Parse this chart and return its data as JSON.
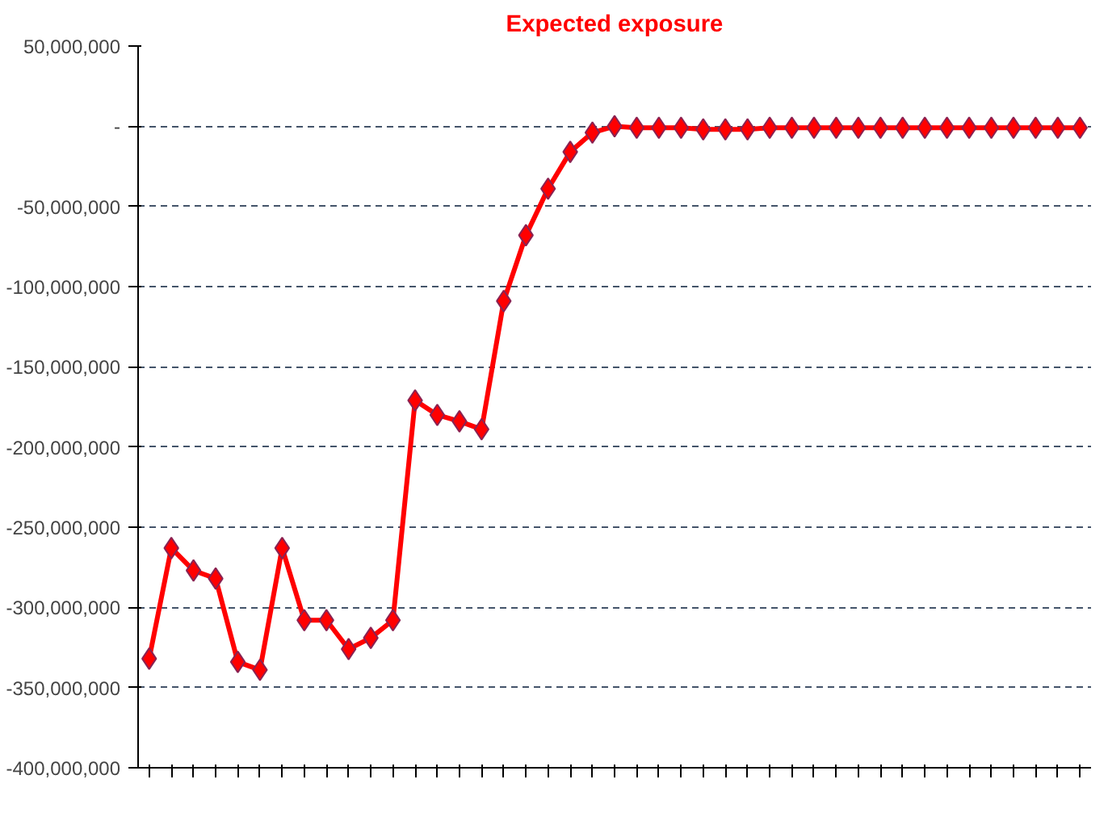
{
  "chart_data": {
    "type": "line",
    "title": "Expected exposure",
    "categories": [
      null,
      null,
      null,
      null,
      null,
      null,
      null,
      null,
      null,
      null,
      null,
      null,
      null,
      null,
      null,
      null,
      null,
      null,
      null,
      null,
      null,
      null,
      null,
      null,
      null,
      null,
      null,
      null,
      null,
      null,
      null,
      null,
      null,
      null,
      null,
      null,
      null,
      null,
      null,
      null,
      null,
      null,
      null
    ],
    "series": [
      {
        "color": "#ff0000",
        "values": [
          -332000000,
          -263000000,
          -277000000,
          -282000000,
          -334000000,
          -339000000,
          -263000000,
          -308000000,
          -308000000,
          -326000000,
          -319000000,
          -308000000,
          -171000000,
          -180000000,
          -184000000,
          -189000000,
          -109000000,
          -68000000,
          -39000000,
          -16000000,
          -4000000,
          0,
          -1000000,
          -1000000,
          -1000000,
          -2000000,
          -2000000,
          -2000000,
          -1000000,
          -1000000,
          -1000000,
          -1000000,
          -1000000,
          -1000000,
          -1000000,
          -1000000,
          -1000000,
          -1000000,
          -1000000,
          -1000000,
          -1000000,
          -1000000,
          -1000000
        ]
      }
    ],
    "ylim": [
      -400000000,
      50000000
    ],
    "yticks": [
      {
        "value": 50000000,
        "label": "50,000,000"
      },
      {
        "value": 0,
        "label": "-"
      },
      {
        "value": -50000000,
        "label": "-50,000,000"
      },
      {
        "value": -100000000,
        "label": "-100,000,000"
      },
      {
        "value": -150000000,
        "label": "-150,000,000"
      },
      {
        "value": -200000000,
        "label": "-200,000,000"
      },
      {
        "value": -250000000,
        "label": "-250,000,000"
      },
      {
        "value": -300000000,
        "label": "-300,000,000"
      },
      {
        "value": -350000000,
        "label": "-350,000,000"
      },
      {
        "value": -400000000,
        "label": "-400,000,000"
      }
    ],
    "grid": "y",
    "marker": "diamond",
    "line_style": "solid",
    "tick_labels": "y"
  }
}
